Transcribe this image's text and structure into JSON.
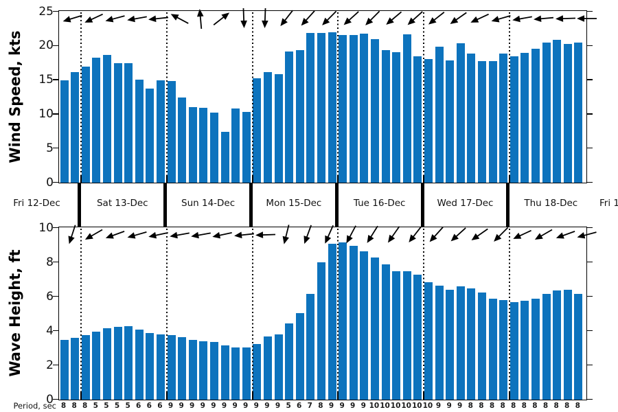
{
  "colors": {
    "bar": "#0D73BD",
    "axis": "#000000",
    "arrow": "#000000",
    "text": "#111111"
  },
  "x_axis": {
    "day_labels": [
      "Fri 12-Dec",
      "Sat 13-Dec",
      "Sun 14-Dec",
      "Mon 15-Dec",
      "Tue 16-Dec",
      "Wed 17-Dec",
      "Thu 18-Dec",
      "Fri 1"
    ]
  },
  "period_row": {
    "label": "Period, sec",
    "values": [
      8,
      8,
      8,
      5,
      5,
      5,
      5,
      6,
      6,
      6,
      9,
      9,
      9,
      9,
      9,
      9,
      9,
      9,
      9,
      9,
      9,
      5,
      6,
      7,
      8,
      9,
      9,
      9,
      9,
      10,
      10,
      10,
      10,
      10,
      10,
      9,
      9,
      9,
      8,
      8,
      8,
      8,
      8,
      8,
      8,
      8,
      8,
      8,
      8
    ]
  },
  "chart_data": [
    {
      "type": "bar",
      "title": "",
      "ylabel": "Wind Speed, kts",
      "ylim": [
        0,
        25
      ],
      "yticks": [
        0,
        5,
        10,
        15,
        20,
        25
      ],
      "n_bars": 49,
      "grid": "off",
      "legend": "none",
      "day_boundary_lines": "dotted",
      "values": [
        15.0,
        16.2,
        17.0,
        18.3,
        18.7,
        17.5,
        17.5,
        15.1,
        13.8,
        15.0,
        14.9,
        12.5,
        11.0,
        10.9,
        10.2,
        7.4,
        10.8,
        10.3,
        15.3,
        16.2,
        15.9,
        19.2,
        19.4,
        21.9,
        21.9,
        22.0,
        21.6,
        21.6,
        21.8,
        21.0,
        19.4,
        19.1,
        21.7,
        18.5,
        18.1,
        19.9,
        17.9,
        20.4,
        18.9,
        17.8,
        17.8,
        18.9,
        18.5,
        19.0,
        19.6,
        20.5,
        20.9,
        20.3,
        20.5
      ],
      "arrow_directions_deg": [
        197,
        205,
        195,
        190,
        186,
        152,
        95,
        38,
        272,
        268,
        232,
        228,
        225,
        222,
        225,
        220,
        222,
        218,
        215,
        205,
        196,
        190,
        185,
        182,
        180
      ],
      "arrow_angle_convention": "0=east, 90=up, 180=west, 270=down"
    },
    {
      "type": "bar",
      "title": "",
      "ylabel": "Wave Height, ft",
      "ylim": [
        0,
        10
      ],
      "yticks": [
        0,
        2,
        4,
        6,
        8,
        10
      ],
      "n_bars": 49,
      "grid": "off",
      "legend": "none",
      "day_boundary_lines": "dotted",
      "values": [
        3.5,
        3.6,
        3.75,
        3.95,
        4.15,
        4.25,
        4.3,
        4.1,
        3.9,
        3.8,
        3.75,
        3.65,
        3.5,
        3.4,
        3.35,
        3.15,
        3.05,
        3.05,
        3.25,
        3.7,
        3.8,
        4.45,
        5.05,
        6.15,
        8.0,
        9.1,
        9.15,
        8.95,
        8.65,
        8.3,
        7.9,
        7.5,
        7.5,
        7.3,
        6.85,
        6.65,
        6.4,
        6.6,
        6.5,
        6.25,
        5.9,
        5.8,
        5.7,
        5.75,
        5.9,
        6.15,
        6.35,
        6.4,
        6.15
      ],
      "arrow_directions_deg": [
        252,
        210,
        200,
        196,
        192,
        190,
        190,
        192,
        186,
        182,
        256,
        250,
        246,
        242,
        238,
        235,
        232,
        228,
        222,
        215,
        225,
        205,
        210,
        200,
        195
      ],
      "arrow_angle_convention": "0=east, 90=up, 180=west, 270=down"
    }
  ]
}
